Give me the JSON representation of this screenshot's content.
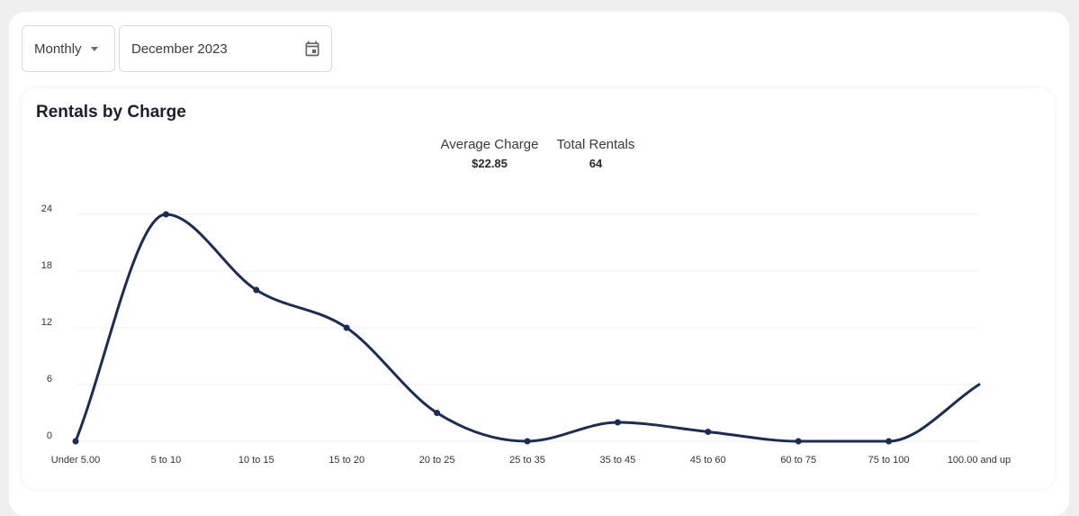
{
  "toolbar": {
    "period_label": "Monthly",
    "date_value": "December 2023",
    "icons": {
      "period": "chevron-down-icon",
      "date": "calendar-icon"
    }
  },
  "card": {
    "title": "Rentals by Charge",
    "stats": {
      "average_label": "Average Charge",
      "average_value": "$22.85",
      "total_label": "Total Rentals",
      "total_value": "64"
    }
  },
  "chart_data": {
    "type": "line",
    "title": "",
    "xlabel": "",
    "ylabel": "",
    "categories": [
      "Under 5.00",
      "5 to 10",
      "10 to 15",
      "15 to 20",
      "20 to 25",
      "25 to 35",
      "35 to 45",
      "45 to 60",
      "60 to 75",
      "75 to 100",
      "100.00 and up"
    ],
    "values": [
      0,
      24,
      16,
      12,
      3,
      0,
      2,
      1,
      0,
      0,
      6
    ],
    "yticks": [
      0,
      6,
      12,
      18,
      24
    ],
    "ylim": [
      0,
      24
    ],
    "grid": true,
    "legend": "none",
    "smooth": true,
    "line_color": "#1b2d57",
    "grid_color": "#f1f1f1",
    "points_marked": [
      true,
      true,
      true,
      true,
      true,
      true,
      true,
      true,
      true,
      true,
      false
    ]
  }
}
